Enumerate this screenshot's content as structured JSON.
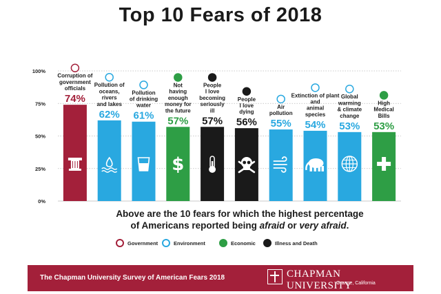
{
  "chart_data": {
    "type": "bar",
    "title": "Top 10 Fears of 2018",
    "categories": [
      "Corruption of government officials",
      "Pollution of oceans, rivers and lakes",
      "Pollution of drinking water",
      "Not having enough money for the future",
      "People I love becoming seriously ill",
      "People I love dying",
      "Air pollution",
      "Extinction of plant and animal species",
      "Global warming & climate change",
      "High Medical Bills"
    ],
    "category_lines": [
      [
        "Corruption of",
        "government",
        "officials"
      ],
      [
        "Pollution of",
        "oceans,",
        "rivers",
        "and lakes"
      ],
      [
        "Pollution",
        "of drinking",
        "water"
      ],
      [
        "Not",
        "having",
        "enough",
        "money for",
        "the future"
      ],
      [
        "People",
        "I love",
        "becoming",
        "seriously",
        "ill"
      ],
      [
        "People",
        "I love",
        "dying"
      ],
      [
        "Air",
        "pollution"
      ],
      [
        "Extinction of plant",
        "and",
        "animal",
        "species"
      ],
      [
        "Global",
        "warming",
        "& climate",
        "change"
      ],
      [
        "High",
        "Medical",
        "Bills"
      ]
    ],
    "values": [
      74,
      62,
      61,
      57,
      57,
      56,
      55,
      54,
      53,
      53
    ],
    "value_labels": [
      "74%",
      "62%",
      "61%",
      "57%",
      "57%",
      "56%",
      "55%",
      "54%",
      "53%",
      "53%"
    ],
    "groups": [
      "Government",
      "Environment",
      "Environment",
      "Economic",
      "Illness and Death",
      "Illness and Death",
      "Environment",
      "Environment",
      "Environment",
      "Economic"
    ],
    "bar_icons": [
      "column-icon",
      "water-icon",
      "glass-icon",
      "dollar-icon",
      "thermometer-icon",
      "skull-icon",
      "wind-icon",
      "elephant-icon",
      "globe-icon",
      "cross-icon"
    ],
    "yticks": [
      "0%",
      "25%",
      "50%",
      "75%",
      "100%"
    ],
    "ylim": [
      0,
      100
    ],
    "grid": true,
    "legend_position": "bottom"
  },
  "caption": {
    "line1": "Above are the 10 fears for which the highest percentage",
    "line2_prefix": "of Americans reported being ",
    "line2_em1": "afraid",
    "line2_mid": " or ",
    "line2_em2": "very afraid",
    "line2_suffix": "."
  },
  "legend": [
    {
      "label": "Government",
      "color": "#a3203a",
      "icon": "column-icon"
    },
    {
      "label": "Environment",
      "color": "#29a8e0",
      "icon": "globe-icon"
    },
    {
      "label": "Economic",
      "color": "#2e9e45",
      "icon": "dollar-icon"
    },
    {
      "label": "Illness and Death",
      "color": "#1a1a1a",
      "icon": "skull-icon"
    }
  ],
  "colors": {
    "Government": "#a3203a",
    "Environment": "#29a8e0",
    "Economic": "#2e9e45",
    "Illness and Death": "#1a1a1a",
    "grid": "#b8b8b8"
  },
  "footer": {
    "survey": "The Chapman University Survey of American Fears 2018",
    "university": "CHAPMAN UNIVERSITY",
    "location": "Orange, California"
  }
}
